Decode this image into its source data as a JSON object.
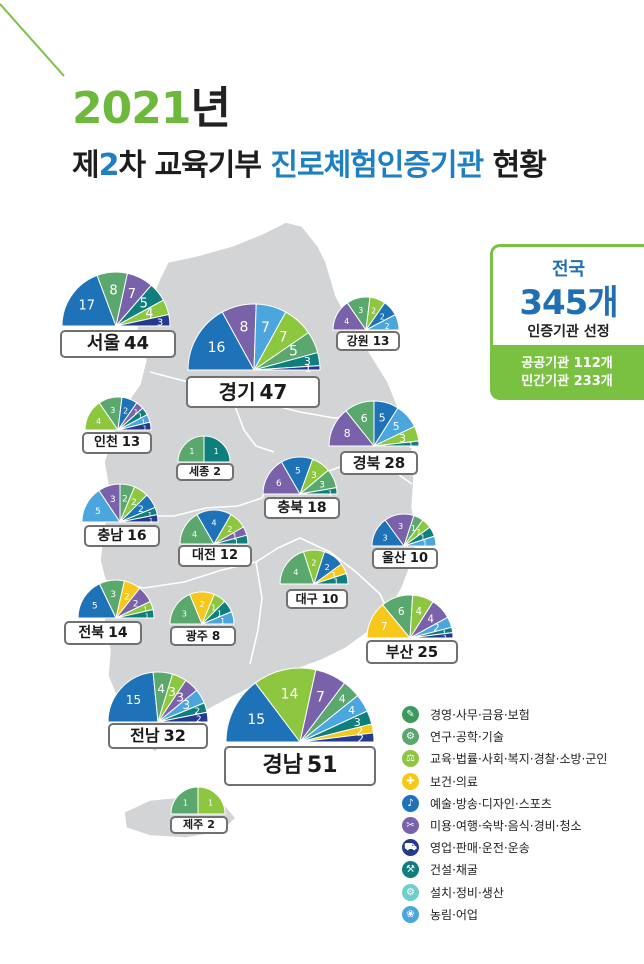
{
  "title": {
    "line1_year": "2021",
    "line1_suffix": "년",
    "line2_a": "제",
    "line2_b": "2",
    "line2_c": "차 교육기부 ",
    "line2_d": "진로체험인증기관",
    "line2_e": " 현황"
  },
  "summary": {
    "title": "전국",
    "count": "345개",
    "caption": "인증기관 선정",
    "public": "공공기관 112개",
    "private": "민간기관 233개"
  },
  "legend": [
    {
      "label": "경영·사무·금융·보험",
      "color": "#3a9a5b",
      "icon": "briefcase-icon",
      "glyph": "✎"
    },
    {
      "label": "연구·공학·기술",
      "color": "#5aa86e",
      "icon": "research-icon",
      "glyph": "⚙"
    },
    {
      "label": "교육·법률·사회·복지·경찰·소방·군인",
      "color": "#8dc63f",
      "icon": "scales-icon",
      "glyph": "⚖"
    },
    {
      "label": "보건·의료",
      "color": "#f5c81b",
      "icon": "medical-icon",
      "glyph": "✚"
    },
    {
      "label": "예술·방송·디자인·스포츠",
      "color": "#1d72b8",
      "icon": "art-icon",
      "glyph": "♪"
    },
    {
      "label": "미용·여행·숙박·음식·경비·청소",
      "color": "#7a62ab",
      "icon": "beauty-icon",
      "glyph": "✂"
    },
    {
      "label": "영업·판매·운전·운송",
      "color": "#233a8f",
      "icon": "vehicle-icon",
      "glyph": "⛟"
    },
    {
      "label": "건설·채굴",
      "color": "#0e7f7d",
      "icon": "construction-icon",
      "glyph": "⚒"
    },
    {
      "label": "설치·정비·생산",
      "color": "#6ecfcb",
      "icon": "tools-icon",
      "glyph": "⚙"
    },
    {
      "label": "농림·어업",
      "color": "#4aa6dd",
      "icon": "farm-icon",
      "glyph": "❀"
    }
  ],
  "chart_data": {
    "type": "pie",
    "title": "2021년 제2차 교육기부 진로체험인증기관 현황",
    "series_names": [
      "경영·사무·금융·보험",
      "연구·공학·기술",
      "교육·법률·사회·복지·경찰·소방·군인",
      "보건·의료",
      "예술·방송·디자인·스포츠",
      "미용·여행·숙박·음식·경비·청소",
      "영업·판매·운전·운송",
      "건설·채굴",
      "설치·정비·생산",
      "농림·어업"
    ],
    "regions": [
      {
        "name": "서울",
        "total": 44,
        "slices": [
          {
            "category": "예술·방송·디자인·스포츠",
            "value": 17
          },
          {
            "category": "연구·공학·기술",
            "value": 8
          },
          {
            "category": "미용·여행·숙박·음식·경비·청소",
            "value": 7
          },
          {
            "category": "건설·채굴",
            "value": 5
          },
          {
            "category": "교육·법률·사회·복지·경찰·소방·군인",
            "value": 4
          },
          {
            "category": "영업·판매·운전·운송",
            "value": 3
          }
        ]
      },
      {
        "name": "경기",
        "total": 47,
        "slices": [
          {
            "category": "예술·방송·디자인·스포츠",
            "value": 16
          },
          {
            "category": "미용·여행·숙박·음식·경비·청소",
            "value": 8
          },
          {
            "category": "농림·어업",
            "value": 7
          },
          {
            "category": "교육·법률·사회·복지·경찰·소방·군인",
            "value": 7
          },
          {
            "category": "연구·공학·기술",
            "value": 5
          },
          {
            "category": "건설·채굴",
            "value": 3
          },
          {
            "category": "영업·판매·운전·운송",
            "value": 1
          }
        ]
      },
      {
        "name": "강원",
        "total": 13,
        "slices": [
          {
            "category": "미용·여행·숙박·음식·경비·청소",
            "value": 4
          },
          {
            "category": "연구·공학·기술",
            "value": 3
          },
          {
            "category": "교육·법률·사회·복지·경찰·소방·군인",
            "value": 2
          },
          {
            "category": "예술·방송·디자인·스포츠",
            "value": 2
          },
          {
            "category": "농림·어업",
            "value": 2
          }
        ]
      },
      {
        "name": "인천",
        "total": 13,
        "slices": [
          {
            "category": "교육·법률·사회·복지·경찰·소방·군인",
            "value": 4
          },
          {
            "category": "연구·공학·기술",
            "value": 3
          },
          {
            "category": "예술·방송·디자인·스포츠",
            "value": 2
          },
          {
            "category": "미용·여행·숙박·음식·경비·청소",
            "value": 1
          },
          {
            "category": "건설·채굴",
            "value": 1
          },
          {
            "category": "농림·어업",
            "value": 1
          },
          {
            "category": "영업·판매·운전·운송",
            "value": 1
          }
        ]
      },
      {
        "name": "세종",
        "total": 2,
        "slices": [
          {
            "category": "연구·공학·기술",
            "value": 1
          },
          {
            "category": "건설·채굴",
            "value": 1
          }
        ]
      },
      {
        "name": "경북",
        "total": 28,
        "slices": [
          {
            "category": "미용·여행·숙박·음식·경비·청소",
            "value": 8
          },
          {
            "category": "연구·공학·기술",
            "value": 6
          },
          {
            "category": "예술·방송·디자인·스포츠",
            "value": 5
          },
          {
            "category": "농림·어업",
            "value": 5
          },
          {
            "category": "교육·법률·사회·복지·경찰·소방·군인",
            "value": 3
          },
          {
            "category": "건설·채굴",
            "value": 1
          }
        ]
      },
      {
        "name": "충북",
        "total": 18,
        "slices": [
          {
            "category": "미용·여행·숙박·음식·경비·청소",
            "value": 6
          },
          {
            "category": "예술·방송·디자인·스포츠",
            "value": 5
          },
          {
            "category": "교육·법률·사회·복지·경찰·소방·군인",
            "value": 3
          },
          {
            "category": "연구·공학·기술",
            "value": 3
          },
          {
            "category": "건설·채굴",
            "value": 1
          }
        ]
      },
      {
        "name": "충남",
        "total": 16,
        "slices": [
          {
            "category": "농림·어업",
            "value": 5
          },
          {
            "category": "미용·여행·숙박·음식·경비·청소",
            "value": 3
          },
          {
            "category": "연구·공학·기술",
            "value": 2
          },
          {
            "category": "교육·법률·사회·복지·경찰·소방·군인",
            "value": 2
          },
          {
            "category": "예술·방송·디자인·스포츠",
            "value": 2
          },
          {
            "category": "건설·채굴",
            "value": 1
          },
          {
            "category": "영업·판매·운전·운송",
            "value": 1
          }
        ]
      },
      {
        "name": "대전",
        "total": 12,
        "slices": [
          {
            "category": "연구·공학·기술",
            "value": 4
          },
          {
            "category": "예술·방송·디자인·스포츠",
            "value": 4
          },
          {
            "category": "교육·법률·사회·복지·경찰·소방·군인",
            "value": 2
          },
          {
            "category": "미용·여행·숙박·음식·경비·청소",
            "value": 1
          },
          {
            "category": "건설·채굴",
            "value": 1
          }
        ]
      },
      {
        "name": "울산",
        "total": 10,
        "slices": [
          {
            "category": "예술·방송·디자인·스포츠",
            "value": 3
          },
          {
            "category": "미용·여행·숙박·음식·경비·청소",
            "value": 3
          },
          {
            "category": "연구·공학·기술",
            "value": 1
          },
          {
            "category": "교육·법률·사회·복지·경찰·소방·군인",
            "value": 1
          },
          {
            "category": "건설·채굴",
            "value": 1
          },
          {
            "category": "농림·어업",
            "value": 1
          }
        ]
      },
      {
        "name": "전북",
        "total": 14,
        "slices": [
          {
            "category": "예술·방송·디자인·스포츠",
            "value": 5
          },
          {
            "category": "연구·공학·기술",
            "value": 3
          },
          {
            "category": "보건·의료",
            "value": 2
          },
          {
            "category": "미용·여행·숙박·음식·경비·청소",
            "value": 2
          },
          {
            "category": "교육·법률·사회·복지·경찰·소방·군인",
            "value": 1
          },
          {
            "category": "건설·채굴",
            "value": 1
          }
        ]
      },
      {
        "name": "대구",
        "total": 10,
        "slices": [
          {
            "category": "연구·공학·기술",
            "value": 4
          },
          {
            "category": "교육·법률·사회·복지·경찰·소방·군인",
            "value": 2
          },
          {
            "category": "예술·방송·디자인·스포츠",
            "value": 2
          },
          {
            "category": "보건·의료",
            "value": 1
          },
          {
            "category": "건설·채굴",
            "value": 1
          }
        ]
      },
      {
        "name": "광주",
        "total": 8,
        "slices": [
          {
            "category": "연구·공학·기술",
            "value": 3
          },
          {
            "category": "보건·의료",
            "value": 2
          },
          {
            "category": "교육·법률·사회·복지·경찰·소방·군인",
            "value": 1
          },
          {
            "category": "건설·채굴",
            "value": 1
          },
          {
            "category": "농림·어업",
            "value": 1
          }
        ]
      },
      {
        "name": "부산",
        "total": 25,
        "slices": [
          {
            "category": "보건·의료",
            "value": 7
          },
          {
            "category": "연구·공학·기술",
            "value": 6
          },
          {
            "category": "교육·법률·사회·복지·경찰·소방·군인",
            "value": 4
          },
          {
            "category": "미용·여행·숙박·음식·경비·청소",
            "value": 4
          },
          {
            "category": "농림·어업",
            "value": 2
          },
          {
            "category": "건설·채굴",
            "value": 1
          },
          {
            "category": "영업·판매·운전·운송",
            "value": 1
          }
        ]
      },
      {
        "name": "전남",
        "total": 32,
        "slices": [
          {
            "category": "예술·방송·디자인·스포츠",
            "value": 15
          },
          {
            "category": "연구·공학·기술",
            "value": 4
          },
          {
            "category": "교육·법률·사회·복지·경찰·소방·군인",
            "value": 3
          },
          {
            "category": "미용·여행·숙박·음식·경비·청소",
            "value": 3
          },
          {
            "category": "농림·어업",
            "value": 3
          },
          {
            "category": "건설·채굴",
            "value": 2
          },
          {
            "category": "영업·판매·운전·운송",
            "value": 2
          }
        ]
      },
      {
        "name": "경남",
        "total": 51,
        "slices": [
          {
            "category": "예술·방송·디자인·스포츠",
            "value": 15
          },
          {
            "category": "교육·법률·사회·복지·경찰·소방·군인",
            "value": 14
          },
          {
            "category": "미용·여행·숙박·음식·경비·청소",
            "value": 7
          },
          {
            "category": "연구·공학·기술",
            "value": 4
          },
          {
            "category": "농림·어업",
            "value": 4
          },
          {
            "category": "건설·채굴",
            "value": 3
          },
          {
            "category": "보건·의료",
            "value": 2
          },
          {
            "category": "영업·판매·운전·운송",
            "value": 2
          }
        ]
      },
      {
        "name": "제주",
        "total": 2,
        "slices": [
          {
            "category": "연구·공학·기술",
            "value": 1
          },
          {
            "category": "교육·법률·사회·복지·경찰·소방·군인",
            "value": 1
          }
        ]
      }
    ]
  }
}
